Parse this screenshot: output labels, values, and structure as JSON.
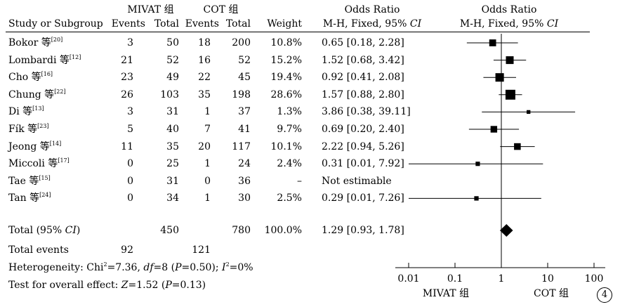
{
  "chart_data": {
    "type": "forest",
    "headers": {
      "study": "Study or Subgroup",
      "group1": "MIVAT 组",
      "group2": "COT 组",
      "events": "Events",
      "total": "Total",
      "weight": "Weight",
      "or_title": "Odds Ratio",
      "or_method": "M-H, Fixed, 95% ",
      "or_ci_italic": "CI"
    },
    "studies": [
      {
        "name": "Bokor 等",
        "ref": "[20]",
        "e1": "3",
        "t1": "50",
        "e2": "18",
        "t2": "200",
        "weight": "10.8%",
        "ci_text": "0.65 [0.18, 2.28]",
        "or": 0.65,
        "lo": 0.18,
        "hi": 2.28,
        "w": 10.8
      },
      {
        "name": "Lombardi 等",
        "ref": "[12]",
        "e1": "21",
        "t1": "52",
        "e2": "16",
        "t2": "52",
        "weight": "15.2%",
        "ci_text": "1.52 [0.68, 3.42]",
        "or": 1.52,
        "lo": 0.68,
        "hi": 3.42,
        "w": 15.2
      },
      {
        "name": "Cho 等",
        "ref": "[16]",
        "e1": "23",
        "t1": "49",
        "e2": "22",
        "t2": "45",
        "weight": "19.4%",
        "ci_text": "0.92 [0.41, 2.08]",
        "or": 0.92,
        "lo": 0.41,
        "hi": 2.08,
        "w": 19.4
      },
      {
        "name": "Chung 等",
        "ref": "[22]",
        "e1": "26",
        "t1": "103",
        "e2": "35",
        "t2": "198",
        "weight": "28.6%",
        "ci_text": "1.57 [0.88, 2.80]",
        "or": 1.57,
        "lo": 0.88,
        "hi": 2.8,
        "w": 28.6
      },
      {
        "name": "Di 等",
        "ref": "[13]",
        "e1": "3",
        "t1": "31",
        "e2": "1",
        "t2": "37",
        "weight": "1.3%",
        "ci_text": "3.86 [0.38, 39.11]",
        "or": 3.86,
        "lo": 0.38,
        "hi": 39.11,
        "w": 1.3
      },
      {
        "name": "Fík 等",
        "ref": "[23]",
        "e1": "5",
        "t1": "40",
        "e2": "7",
        "t2": "41",
        "weight": "9.7%",
        "ci_text": "0.69 [0.20, 2.40]",
        "or": 0.69,
        "lo": 0.2,
        "hi": 2.4,
        "w": 9.7
      },
      {
        "name": "Jeong 等",
        "ref": "[14]",
        "e1": "11",
        "t1": "35",
        "e2": "20",
        "t2": "117",
        "weight": "10.1%",
        "ci_text": "2.22 [0.94, 5.26]",
        "or": 2.22,
        "lo": 0.94,
        "hi": 5.26,
        "w": 10.1
      },
      {
        "name": "Miccoli 等",
        "ref": "[17]",
        "e1": "0",
        "t1": "25",
        "e2": "1",
        "t2": "24",
        "weight": "2.4%",
        "ci_text": "0.31 [0.01, 7.92]",
        "or": 0.31,
        "lo": 0.01,
        "hi": 7.92,
        "w": 2.4
      },
      {
        "name": "Tae 等",
        "ref": "[15]",
        "e1": "0",
        "t1": "31",
        "e2": "0",
        "t2": "36",
        "weight": "–",
        "ci_text": "Not estimable",
        "or": null,
        "lo": null,
        "hi": null,
        "w": 0
      },
      {
        "name": "Tan 等",
        "ref": "[24]",
        "e1": "0",
        "t1": "34",
        "e2": "1",
        "t2": "30",
        "weight": "2.5%",
        "ci_text": "0.29 [0.01, 7.26]",
        "or": 0.29,
        "lo": 0.01,
        "hi": 7.26,
        "w": 2.5
      }
    ],
    "total": {
      "label_prefix": "Total (95% ",
      "label_ci": "CI",
      "label_suffix": ")",
      "t1": "450",
      "t2": "780",
      "weight": "100.0%",
      "ci_text": "1.29 [0.93, 1.78]",
      "or": 1.29,
      "lo": 0.93,
      "hi": 1.78
    },
    "total_events": {
      "label": "Total events",
      "e1": "92",
      "e2": "121"
    },
    "heterogeneity": {
      "prefix": "Heterogeneity: Chi",
      "sup1": "2",
      "eq1": "=7.36, ",
      "df_label": "df",
      "df_value": "=8 (",
      "p_label": "P",
      "p_value": "=0.50); ",
      "i_label": "I",
      "sup2": "2",
      "i_value": "=0%"
    },
    "overall_effect": {
      "prefix": "Test for overall effect: ",
      "z_label": "Z",
      "z_value": "=1.52 (",
      "p_label": "P",
      "p_value": "=0.13)"
    },
    "axis": {
      "scale": "log",
      "xlim": [
        0.01,
        100
      ],
      "ticks": [
        0.01,
        0.1,
        1,
        10,
        100
      ],
      "tick_labels": [
        "0.01",
        "0.1",
        "1",
        "10",
        "100"
      ],
      "left_label": "MIVAT 组",
      "right_label": "COT 组"
    },
    "figure_number": "4"
  }
}
